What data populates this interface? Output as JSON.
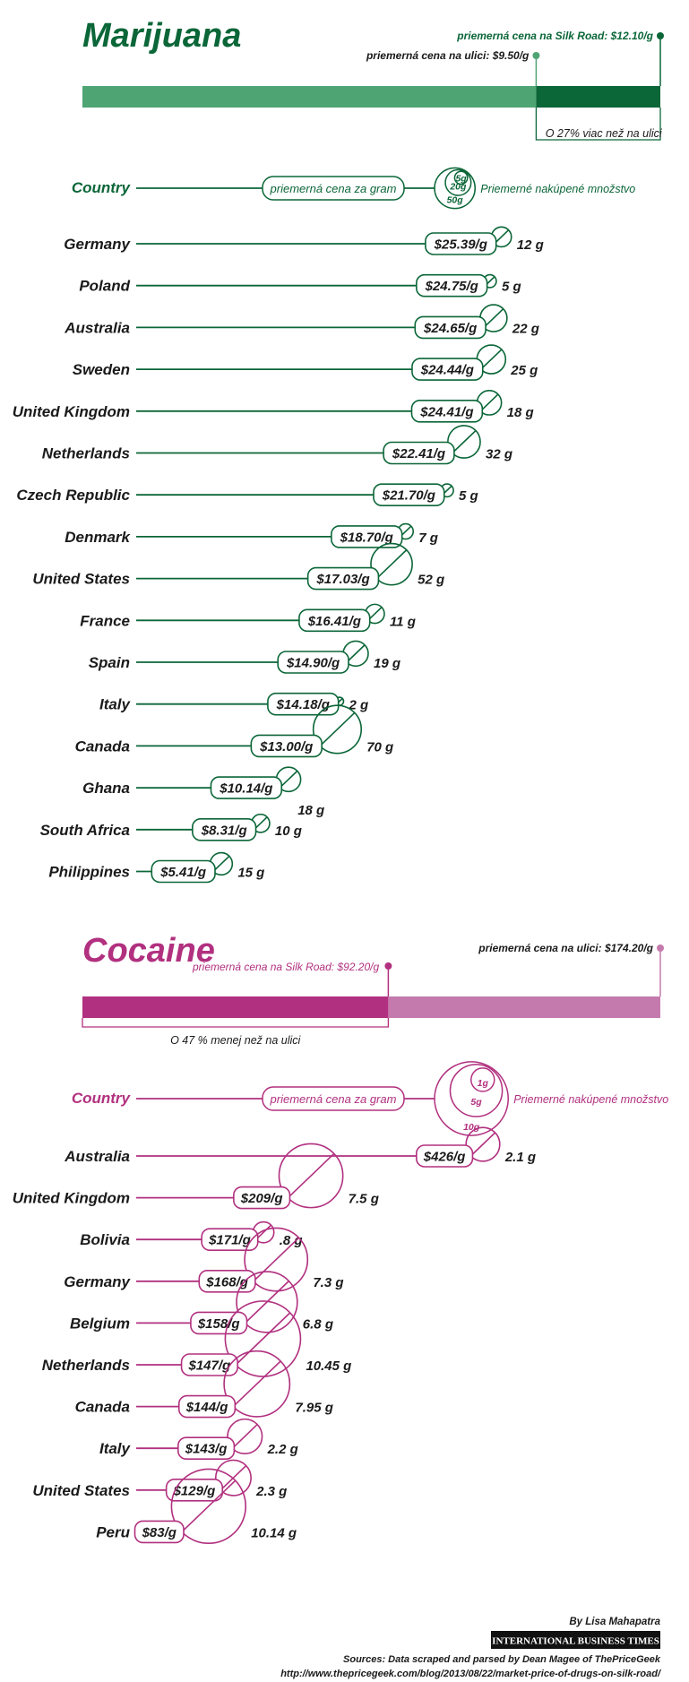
{
  "colors": {
    "marijuana_dark": "#0b6638",
    "marijuana_light": "#4fa474",
    "cocaine_dark": "#b1307f",
    "cocaine_light": "#c47aac",
    "text": "#1a1a1a"
  },
  "chart_data": [
    {
      "type": "bubble-bar",
      "title": "Marijuana",
      "silk_road_label": "priemerná cena na Silk Road: $12.10/g",
      "street_label": "priemerná cena na ulici: $9.50/g",
      "comparison_label": "O 27% viac než na ulici",
      "silk_road_price": 12.1,
      "street_price": 9.5,
      "header": {
        "country": "Country",
        "price": "priemerná cena za gram",
        "quantity": "Priemerné nakúpené množstvo",
        "legend_sizes": [
          "5g",
          "20g",
          "50g"
        ],
        "legend_values": [
          5,
          20,
          50
        ]
      },
      "categories": [
        "Germany",
        "Poland",
        "Australia",
        "Sweden",
        "United Kingdom",
        "Netherlands",
        "Czech Republic",
        "Denmark",
        "United States",
        "France",
        "Spain",
        "Italy",
        "Canada",
        "Ghana",
        "South Africa",
        "Philippines"
      ],
      "price_labels": [
        "$25.39/g",
        "$24.75/g",
        "$24.65/g",
        "$24.44/g",
        "$24.41/g",
        "$22.41/g",
        "$21.70/g",
        "$18.70/g",
        "$17.03/g",
        "$16.41/g",
        "$14.90/g",
        "$14.18/g",
        "$13.00/g",
        "$10.14/g",
        "$8.31/g",
        "$5.41/g"
      ],
      "prices": [
        25.39,
        24.75,
        24.65,
        24.44,
        24.41,
        22.41,
        21.7,
        18.7,
        17.03,
        16.41,
        14.9,
        14.18,
        13.0,
        10.14,
        8.31,
        5.41
      ],
      "qty_labels": [
        "12 g",
        "5 g",
        "22 g",
        "25 g",
        "18 g",
        "32 g",
        "5 g",
        "7 g",
        "52 g",
        "11 g",
        "19 g",
        "2 g",
        "70 g",
        "18 g",
        "10 g",
        "15 g"
      ],
      "quantities": [
        12,
        5,
        22,
        25,
        18,
        32,
        5,
        7,
        52,
        11,
        19,
        2,
        70,
        18,
        10,
        15
      ]
    },
    {
      "type": "bubble-bar",
      "title": "Cocaine",
      "silk_road_label": "priemerná cena na Silk Road: $92.20/g",
      "street_label": "priemerná cena na ulici: $174.20/g",
      "comparison_label": "O 47 % menej než na ulici",
      "silk_road_price": 92.2,
      "street_price": 174.2,
      "header": {
        "country": "Country",
        "price": "priemerná cena za gram",
        "quantity": "Priemerné nakúpené množstvo",
        "legend_sizes": [
          "1g",
          "5g",
          "10g"
        ],
        "legend_values": [
          1,
          5,
          10
        ]
      },
      "categories": [
        "Australia",
        "United Kingdom",
        "Bolivia",
        "Germany",
        "Belgium",
        "Netherlands",
        "Canada",
        "Italy",
        "United States",
        "Peru"
      ],
      "price_labels": [
        "$426/g",
        "$209/g",
        "$171/g",
        "$168/g",
        "$158/g",
        "$147/g",
        "$144/g",
        "$143/g",
        "$129/g",
        "$83/g"
      ],
      "prices": [
        426,
        209,
        171,
        168,
        158,
        147,
        144,
        143,
        129,
        83
      ],
      "qty_labels": [
        "2.1 g",
        "7.5 g",
        ".8 g",
        "7.3 g",
        "6.8 g",
        "10.45 g",
        "7.95 g",
        "2.2 g",
        "2.3 g",
        "10.14 g"
      ],
      "quantities": [
        2.1,
        7.5,
        0.8,
        7.3,
        6.8,
        10.45,
        7.95,
        2.2,
        2.3,
        10.14
      ]
    }
  ],
  "footer": {
    "byline": "By Lisa Mahapatra",
    "publisher": "INTERNATIONAL BUSINESS TIMES",
    "sources": "Sources: Data scraped and parsed by Dean Magee of ThePriceGeek",
    "url": "http://www.thepricegeek.com/blog/2013/08/22/market-price-of-drugs-on-silk-road/"
  }
}
